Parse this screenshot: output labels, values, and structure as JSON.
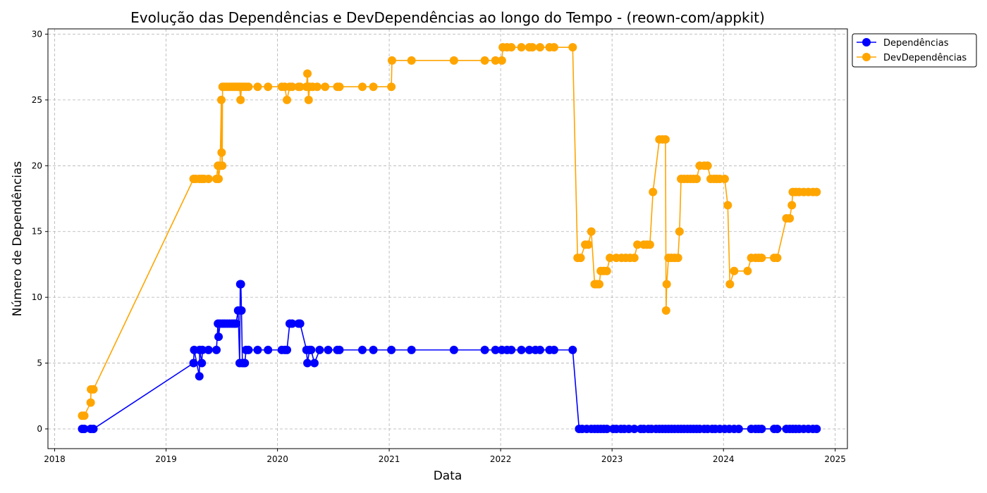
{
  "chart_data": {
    "type": "line",
    "title": "Evolução das Dependências e DevDependências ao longo do Tempo - (reown-com/appkit)",
    "xlabel": "Data",
    "ylabel": "Número de Dependências",
    "x_ticks": [
      "2018",
      "2019",
      "2020",
      "2021",
      "2022",
      "2023",
      "2024",
      "2025"
    ],
    "y_ticks": [
      0,
      5,
      10,
      15,
      20,
      25,
      30
    ],
    "xlim": [
      "2017-12-10",
      "2025-02-10"
    ],
    "ylim": [
      -1.5,
      30.4
    ],
    "grid": true,
    "legend_position": "outside-top-right",
    "series": [
      {
        "name": "Dependências",
        "color": "#0000ff",
        "points": [
          [
            "2018-04-01",
            0
          ],
          [
            "2018-04-08",
            0
          ],
          [
            "2018-04-29",
            0
          ],
          [
            "2018-05-08",
            0
          ],
          [
            "2019-04-01",
            5
          ],
          [
            "2019-04-03",
            6
          ],
          [
            "2019-04-20",
            4
          ],
          [
            "2019-04-21",
            6
          ],
          [
            "2019-04-28",
            5
          ],
          [
            "2019-04-30",
            6
          ],
          [
            "2019-05-20",
            6
          ],
          [
            "2019-06-15",
            6
          ],
          [
            "2019-06-20",
            8
          ],
          [
            "2019-06-22",
            7
          ],
          [
            "2019-06-27",
            8
          ],
          [
            "2019-07-05",
            8
          ],
          [
            "2019-07-12",
            8
          ],
          [
            "2019-07-20",
            8
          ],
          [
            "2019-07-28",
            8
          ],
          [
            "2019-08-05",
            8
          ],
          [
            "2019-08-12",
            8
          ],
          [
            "2019-08-18",
            8
          ],
          [
            "2019-08-25",
            9
          ],
          [
            "2019-08-30",
            5
          ],
          [
            "2019-09-01",
            11
          ],
          [
            "2019-09-03",
            11
          ],
          [
            "2019-09-05",
            9
          ],
          [
            "2019-09-08",
            5
          ],
          [
            "2019-09-12",
            5
          ],
          [
            "2019-09-16",
            5
          ],
          [
            "2019-09-20",
            6
          ],
          [
            "2019-09-28",
            6
          ],
          [
            "2019-10-28",
            6
          ],
          [
            "2019-12-01",
            6
          ],
          [
            "2020-01-15",
            6
          ],
          [
            "2020-01-25",
            6
          ],
          [
            "2020-02-01",
            6
          ],
          [
            "2020-02-10",
            8
          ],
          [
            "2020-02-18",
            8
          ],
          [
            "2020-03-10",
            8
          ],
          [
            "2020-03-15",
            8
          ],
          [
            "2020-04-05",
            6
          ],
          [
            "2020-04-08",
            5
          ],
          [
            "2020-04-15",
            6
          ],
          [
            "2020-04-20",
            6
          ],
          [
            "2020-05-01",
            5
          ],
          [
            "2020-05-18",
            6
          ],
          [
            "2020-06-15",
            6
          ],
          [
            "2020-07-15",
            6
          ],
          [
            "2020-07-22",
            6
          ],
          [
            "2020-10-05",
            6
          ],
          [
            "2020-11-10",
            6
          ],
          [
            "2021-01-08",
            6
          ],
          [
            "2021-03-15",
            6
          ],
          [
            "2021-08-01",
            6
          ],
          [
            "2021-11-10",
            6
          ],
          [
            "2021-12-15",
            6
          ],
          [
            "2022-01-05",
            6
          ],
          [
            "2022-01-22",
            6
          ],
          [
            "2022-02-05",
            6
          ],
          [
            "2022-03-10",
            6
          ],
          [
            "2022-04-05",
            6
          ],
          [
            "2022-04-25",
            6
          ],
          [
            "2022-05-10",
            6
          ],
          [
            "2022-06-10",
            6
          ],
          [
            "2022-06-25",
            6
          ],
          [
            "2022-08-25",
            6
          ],
          [
            "2022-09-15",
            0
          ],
          [
            "2022-09-25",
            0
          ],
          [
            "2022-10-10",
            0
          ],
          [
            "2022-10-25",
            0
          ],
          [
            "2022-11-05",
            0
          ],
          [
            "2022-11-15",
            0
          ],
          [
            "2022-11-25",
            0
          ],
          [
            "2022-12-05",
            0
          ],
          [
            "2022-12-15",
            0
          ],
          [
            "2023-01-05",
            0
          ],
          [
            "2023-01-15",
            0
          ],
          [
            "2023-01-30",
            0
          ],
          [
            "2023-02-10",
            0
          ],
          [
            "2023-02-25",
            0
          ],
          [
            "2023-03-15",
            0
          ],
          [
            "2023-04-05",
            0
          ],
          [
            "2023-04-15",
            0
          ],
          [
            "2023-04-30",
            0
          ],
          [
            "2023-05-10",
            0
          ],
          [
            "2023-05-25",
            0
          ],
          [
            "2023-06-05",
            0
          ],
          [
            "2023-06-15",
            0
          ],
          [
            "2023-06-25",
            0
          ],
          [
            "2023-07-05",
            0
          ],
          [
            "2023-07-15",
            0
          ],
          [
            "2023-07-25",
            0
          ],
          [
            "2023-08-05",
            0
          ],
          [
            "2023-08-15",
            0
          ],
          [
            "2023-08-25",
            0
          ],
          [
            "2023-09-05",
            0
          ],
          [
            "2023-09-15",
            0
          ],
          [
            "2023-09-25",
            0
          ],
          [
            "2023-10-05",
            0
          ],
          [
            "2023-10-15",
            0
          ],
          [
            "2023-10-30",
            0
          ],
          [
            "2023-11-10",
            0
          ],
          [
            "2023-11-25",
            0
          ],
          [
            "2023-12-05",
            0
          ],
          [
            "2023-12-20",
            0
          ],
          [
            "2024-01-05",
            0
          ],
          [
            "2024-01-20",
            0
          ],
          [
            "2024-02-05",
            0
          ],
          [
            "2024-02-20",
            0
          ],
          [
            "2024-04-01",
            0
          ],
          [
            "2024-04-15",
            0
          ],
          [
            "2024-04-25",
            0
          ],
          [
            "2024-05-05",
            0
          ],
          [
            "2024-06-15",
            0
          ],
          [
            "2024-06-25",
            0
          ],
          [
            "2024-07-25",
            0
          ],
          [
            "2024-08-05",
            0
          ],
          [
            "2024-08-15",
            0
          ],
          [
            "2024-08-25",
            0
          ],
          [
            "2024-09-05",
            0
          ],
          [
            "2024-09-20",
            0
          ],
          [
            "2024-10-05",
            0
          ],
          [
            "2024-10-20",
            0
          ],
          [
            "2024-11-01",
            0
          ]
        ]
      },
      {
        "name": "DevDependências",
        "color": "#ffa500",
        "points": [
          [
            "2018-04-01",
            1
          ],
          [
            "2018-04-08",
            1
          ],
          [
            "2018-04-29",
            2
          ],
          [
            "2018-04-30",
            3
          ],
          [
            "2018-05-08",
            3
          ],
          [
            "2019-04-01",
            19
          ],
          [
            "2019-04-08",
            19
          ],
          [
            "2019-04-20",
            19
          ],
          [
            "2019-04-28",
            19
          ],
          [
            "2019-05-05",
            19
          ],
          [
            "2019-05-20",
            19
          ],
          [
            "2019-06-15",
            19
          ],
          [
            "2019-06-20",
            20
          ],
          [
            "2019-06-22",
            19
          ],
          [
            "2019-06-27",
            20
          ],
          [
            "2019-07-01",
            25
          ],
          [
            "2019-07-02",
            21
          ],
          [
            "2019-07-04",
            20
          ],
          [
            "2019-07-05",
            26
          ],
          [
            "2019-07-12",
            26
          ],
          [
            "2019-07-20",
            26
          ],
          [
            "2019-07-28",
            26
          ],
          [
            "2019-08-05",
            26
          ],
          [
            "2019-08-12",
            26
          ],
          [
            "2019-08-18",
            26
          ],
          [
            "2019-08-25",
            26
          ],
          [
            "2019-08-30",
            26
          ],
          [
            "2019-09-02",
            25
          ],
          [
            "2019-09-05",
            26
          ],
          [
            "2019-09-12",
            26
          ],
          [
            "2019-09-20",
            26
          ],
          [
            "2019-09-28",
            26
          ],
          [
            "2019-10-28",
            26
          ],
          [
            "2019-12-01",
            26
          ],
          [
            "2020-01-15",
            26
          ],
          [
            "2020-01-25",
            26
          ],
          [
            "2020-02-01",
            25
          ],
          [
            "2020-02-10",
            26
          ],
          [
            "2020-02-18",
            26
          ],
          [
            "2020-03-10",
            26
          ],
          [
            "2020-03-15",
            26
          ],
          [
            "2020-04-05",
            26
          ],
          [
            "2020-04-08",
            27
          ],
          [
            "2020-04-12",
            25
          ],
          [
            "2020-04-15",
            26
          ],
          [
            "2020-04-25",
            26
          ],
          [
            "2020-05-10",
            26
          ],
          [
            "2020-06-05",
            26
          ],
          [
            "2020-07-15",
            26
          ],
          [
            "2020-07-22",
            26
          ],
          [
            "2020-10-05",
            26
          ],
          [
            "2020-11-10",
            26
          ],
          [
            "2021-01-08",
            26
          ],
          [
            "2021-01-10",
            28
          ],
          [
            "2021-03-15",
            28
          ],
          [
            "2021-08-01",
            28
          ],
          [
            "2021-11-10",
            28
          ],
          [
            "2021-12-15",
            28
          ],
          [
            "2022-01-05",
            28
          ],
          [
            "2022-01-08",
            29
          ],
          [
            "2022-01-22",
            29
          ],
          [
            "2022-02-05",
            29
          ],
          [
            "2022-03-10",
            29
          ],
          [
            "2022-04-05",
            29
          ],
          [
            "2022-04-15",
            29
          ],
          [
            "2022-05-10",
            29
          ],
          [
            "2022-06-10",
            29
          ],
          [
            "2022-06-25",
            29
          ],
          [
            "2022-08-25",
            29
          ],
          [
            "2022-09-10",
            13
          ],
          [
            "2022-09-20",
            13
          ],
          [
            "2022-10-05",
            14
          ],
          [
            "2022-10-15",
            14
          ],
          [
            "2022-10-25",
            15
          ],
          [
            "2022-11-05",
            11
          ],
          [
            "2022-11-12",
            11
          ],
          [
            "2022-11-20",
            11
          ],
          [
            "2022-11-25",
            12
          ],
          [
            "2022-12-05",
            12
          ],
          [
            "2022-12-15",
            12
          ],
          [
            "2022-12-25",
            13
          ],
          [
            "2023-01-15",
            13
          ],
          [
            "2023-02-01",
            13
          ],
          [
            "2023-02-15",
            13
          ],
          [
            "2023-03-01",
            13
          ],
          [
            "2023-03-15",
            13
          ],
          [
            "2023-03-25",
            14
          ],
          [
            "2023-04-15",
            14
          ],
          [
            "2023-04-25",
            14
          ],
          [
            "2023-05-05",
            14
          ],
          [
            "2023-05-15",
            18
          ],
          [
            "2023-06-05",
            22
          ],
          [
            "2023-06-15",
            22
          ],
          [
            "2023-06-25",
            22
          ],
          [
            "2023-06-27",
            9
          ],
          [
            "2023-06-29",
            11
          ],
          [
            "2023-07-05",
            13
          ],
          [
            "2023-07-15",
            13
          ],
          [
            "2023-07-25",
            13
          ],
          [
            "2023-08-05",
            13
          ],
          [
            "2023-08-10",
            15
          ],
          [
            "2023-08-15",
            19
          ],
          [
            "2023-08-25",
            19
          ],
          [
            "2023-09-05",
            19
          ],
          [
            "2023-09-15",
            19
          ],
          [
            "2023-09-25",
            19
          ],
          [
            "2023-10-05",
            19
          ],
          [
            "2023-10-15",
            20
          ],
          [
            "2023-10-30",
            20
          ],
          [
            "2023-11-10",
            20
          ],
          [
            "2023-11-20",
            19
          ],
          [
            "2023-12-01",
            19
          ],
          [
            "2023-12-10",
            19
          ],
          [
            "2023-12-20",
            19
          ],
          [
            "2024-01-05",
            19
          ],
          [
            "2024-01-15",
            17
          ],
          [
            "2024-01-22",
            11
          ],
          [
            "2024-02-05",
            12
          ],
          [
            "2024-03-20",
            12
          ],
          [
            "2024-04-01",
            13
          ],
          [
            "2024-04-15",
            13
          ],
          [
            "2024-04-25",
            13
          ],
          [
            "2024-05-05",
            13
          ],
          [
            "2024-06-15",
            13
          ],
          [
            "2024-06-25",
            13
          ],
          [
            "2024-07-25",
            16
          ],
          [
            "2024-08-05",
            16
          ],
          [
            "2024-08-12",
            17
          ],
          [
            "2024-08-15",
            18
          ],
          [
            "2024-08-25",
            18
          ],
          [
            "2024-09-05",
            18
          ],
          [
            "2024-09-20",
            18
          ],
          [
            "2024-10-05",
            18
          ],
          [
            "2024-10-20",
            18
          ],
          [
            "2024-11-01",
            18
          ]
        ]
      }
    ]
  }
}
